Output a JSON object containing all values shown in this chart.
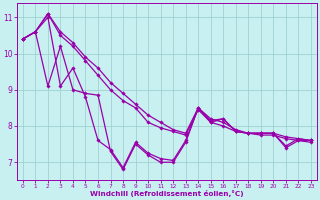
{
  "title": "",
  "xlabel": "Windchill (Refroidissement éolien,°C)",
  "ylabel": "",
  "background_color": "#c8f0f0",
  "line_color": "#9900aa",
  "grid_color": "#99cccc",
  "xlim": [
    -0.5,
    23.5
  ],
  "ylim": [
    6.5,
    11.4
  ],
  "yticks": [
    7,
    8,
    9,
    10,
    11
  ],
  "xticks": [
    0,
    1,
    2,
    3,
    4,
    5,
    6,
    7,
    8,
    9,
    10,
    11,
    12,
    13,
    14,
    15,
    16,
    17,
    18,
    19,
    20,
    21,
    22,
    23
  ],
  "series": [
    {
      "x": [
        0,
        1,
        2,
        3,
        4,
        5,
        6,
        7,
        8,
        9,
        10,
        11,
        12,
        13,
        14,
        15,
        16,
        17,
        18,
        19,
        20,
        21,
        22,
        23
      ],
      "y": [
        10.4,
        10.6,
        11.1,
        10.6,
        10.3,
        9.9,
        9.6,
        9.2,
        8.9,
        8.6,
        8.3,
        8.1,
        7.9,
        7.8,
        8.5,
        8.2,
        8.1,
        7.9,
        7.8,
        7.8,
        7.8,
        7.7,
        7.65,
        7.6
      ]
    },
    {
      "x": [
        0,
        1,
        2,
        3,
        4,
        5,
        6,
        7,
        8,
        9,
        10,
        11,
        12,
        13,
        14,
        15,
        16,
        17,
        18,
        19,
        20,
        21,
        22,
        23
      ],
      "y": [
        10.4,
        10.6,
        11.1,
        10.5,
        10.2,
        9.8,
        9.4,
        9.0,
        8.7,
        8.5,
        8.1,
        7.95,
        7.85,
        7.75,
        8.45,
        8.1,
        8.0,
        7.85,
        7.8,
        7.75,
        7.75,
        7.65,
        7.6,
        7.55
      ]
    },
    {
      "x": [
        0,
        1,
        2,
        3,
        4,
        5,
        6,
        7,
        8,
        9,
        10,
        11,
        12,
        13,
        14,
        15,
        16,
        17,
        18,
        19,
        20,
        21,
        22,
        23
      ],
      "y": [
        10.4,
        10.6,
        11.0,
        9.1,
        9.6,
        8.8,
        7.6,
        7.35,
        6.85,
        7.55,
        7.25,
        7.1,
        7.05,
        7.6,
        8.5,
        8.15,
        8.2,
        7.85,
        7.8,
        7.8,
        7.8,
        7.45,
        7.65,
        7.6
      ]
    },
    {
      "x": [
        0,
        1,
        2,
        3,
        4,
        5,
        6,
        7,
        8,
        9,
        10,
        11,
        12,
        13,
        14,
        15,
        16,
        17,
        18,
        19,
        20,
        21,
        22,
        23
      ],
      "y": [
        10.4,
        10.6,
        9.1,
        10.2,
        9.0,
        8.9,
        8.85,
        7.3,
        6.8,
        7.5,
        7.2,
        7.0,
        7.0,
        7.55,
        8.5,
        8.1,
        8.2,
        7.85,
        7.8,
        7.8,
        7.8,
        7.4,
        7.6,
        7.6
      ]
    }
  ]
}
